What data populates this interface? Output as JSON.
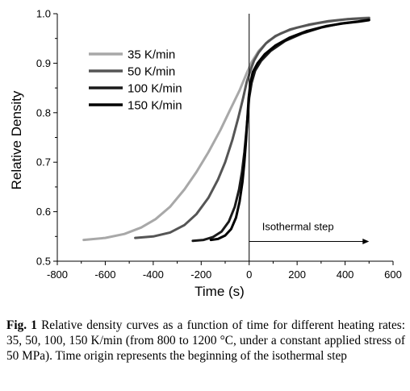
{
  "chart_data": {
    "type": "line",
    "xlabel": "Time (s)",
    "ylabel": "Relative Density",
    "xlim": [
      -800,
      600
    ],
    "ylim": [
      0.5,
      1.0
    ],
    "xticks": [
      "-800",
      "-600",
      "-400",
      "-200",
      "0",
      "200",
      "400",
      "600"
    ],
    "yticks": [
      "0.5",
      "0.6",
      "0.7",
      "0.8",
      "0.9",
      "1.0"
    ],
    "legend_position": "upper-left",
    "series": [
      {
        "name": "35 K/min",
        "color": "#a8a8a8",
        "x": [
          -690,
          -600,
          -520,
          -450,
          -390,
          -330,
          -270,
          -220,
          -170,
          -120,
          -80,
          -40,
          -10,
          10,
          40,
          80,
          130,
          200,
          280,
          360,
          430,
          500
        ],
        "y": [
          0.543,
          0.547,
          0.555,
          0.568,
          0.585,
          0.61,
          0.645,
          0.68,
          0.72,
          0.765,
          0.805,
          0.845,
          0.88,
          0.902,
          0.925,
          0.945,
          0.96,
          0.972,
          0.98,
          0.986,
          0.99,
          0.992
        ]
      },
      {
        "name": "50 K/min",
        "color": "#555555",
        "x": [
          -475,
          -400,
          -330,
          -270,
          -220,
          -170,
          -130,
          -100,
          -70,
          -45,
          -25,
          -10,
          5,
          20,
          40,
          70,
          110,
          170,
          250,
          330,
          410,
          500
        ],
        "y": [
          0.547,
          0.55,
          0.558,
          0.573,
          0.595,
          0.628,
          0.665,
          0.7,
          0.745,
          0.79,
          0.83,
          0.862,
          0.885,
          0.905,
          0.922,
          0.94,
          0.955,
          0.968,
          0.978,
          0.985,
          0.989,
          0.991
        ]
      },
      {
        "name": "100 K/min",
        "color": "#1a1a1a",
        "x": [
          -235,
          -190,
          -150,
          -115,
          -85,
          -60,
          -42,
          -30,
          -20,
          -12,
          -5,
          0,
          10,
          25,
          50,
          90,
          150,
          220,
          300,
          380,
          450,
          500
        ],
        "y": [
          0.541,
          0.543,
          0.549,
          0.56,
          0.58,
          0.61,
          0.645,
          0.68,
          0.72,
          0.76,
          0.8,
          0.83,
          0.86,
          0.885,
          0.905,
          0.925,
          0.945,
          0.96,
          0.972,
          0.98,
          0.984,
          0.988
        ]
      },
      {
        "name": "150 K/min",
        "color": "#000000",
        "x": [
          -160,
          -130,
          -100,
          -75,
          -55,
          -40,
          -28,
          -20,
          -13,
          -7,
          -2,
          5,
          15,
          35,
          65,
          110,
          170,
          240,
          320,
          400,
          460,
          500
        ],
        "y": [
          0.543,
          0.545,
          0.552,
          0.565,
          0.588,
          0.62,
          0.66,
          0.7,
          0.745,
          0.79,
          0.83,
          0.86,
          0.882,
          0.9,
          0.918,
          0.936,
          0.952,
          0.965,
          0.975,
          0.981,
          0.984,
          0.987
        ]
      }
    ],
    "annotations": [
      {
        "text": "Isothermal step",
        "x": 0,
        "x_end": 500,
        "y": 0.54,
        "arrow": true
      }
    ],
    "vertical_line_x": 0
  },
  "caption": {
    "label": "Fig. 1",
    "text": "Relative density curves as a function of time for different heating rates: 35, 50, 100, 150 K/min (from 800 to 1200 °C, under a constant applied stress of 50 MPa). Time origin represents the beginning of the isothermal step"
  }
}
